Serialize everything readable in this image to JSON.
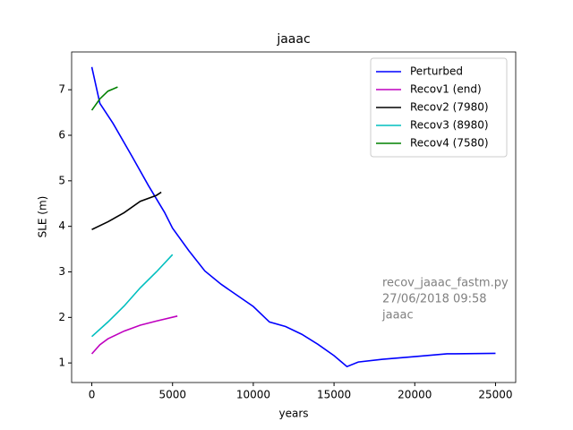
{
  "chart_data": {
    "type": "line",
    "title": "jaaac",
    "x_label": "years",
    "y_label": "SLE (m)",
    "xlim": [
      -1250,
      26250
    ],
    "ylim": [
      0.57,
      7.83
    ],
    "xticks": [
      0,
      5000,
      10000,
      15000,
      20000,
      25000
    ],
    "yticks": [
      1,
      2,
      3,
      4,
      5,
      6,
      7
    ],
    "legend": "upper right",
    "annotations": [
      "recov_jaaac_fastm.py",
      "27/06/2018 09:58",
      "jaaac"
    ],
    "series": [
      {
        "name": "Perturbed",
        "color": "#0000ff",
        "x": [
          0,
          500,
          1300,
          2500,
          3500,
          4500,
          5000,
          6000,
          7000,
          8000,
          10000,
          11000,
          12000,
          13000,
          14000,
          15000,
          15800,
          16500,
          18000,
          20000,
          22000,
          25000
        ],
        "values": [
          7.5,
          6.7,
          6.27,
          5.53,
          4.9,
          4.31,
          3.96,
          3.47,
          3.02,
          2.73,
          2.24,
          1.9,
          1.8,
          1.63,
          1.41,
          1.16,
          0.92,
          1.02,
          1.08,
          1.14,
          1.2,
          1.21
        ]
      },
      {
        "name": "Recov1 (end)",
        "color": "#bf00bf",
        "x": [
          0,
          500,
          1000,
          2000,
          3000,
          4000,
          5300
        ],
        "values": [
          1.2,
          1.4,
          1.53,
          1.7,
          1.83,
          1.92,
          2.03
        ]
      },
      {
        "name": "Recov2 (7980)",
        "color": "#000000",
        "x": [
          0,
          1000,
          2000,
          3000,
          4000,
          4300
        ],
        "values": [
          3.93,
          4.1,
          4.3,
          4.55,
          4.68,
          4.75
        ]
      },
      {
        "name": "Recov3 (8980)",
        "color": "#00bfbf",
        "x": [
          0,
          1000,
          2000,
          3000,
          4000,
          5000
        ],
        "values": [
          1.58,
          1.9,
          2.25,
          2.65,
          3.0,
          3.38
        ]
      },
      {
        "name": "Recov4 (7580)",
        "color": "#008000",
        "x": [
          0,
          500,
          1000,
          1600
        ],
        "values": [
          6.55,
          6.8,
          6.97,
          7.06
        ]
      }
    ]
  }
}
